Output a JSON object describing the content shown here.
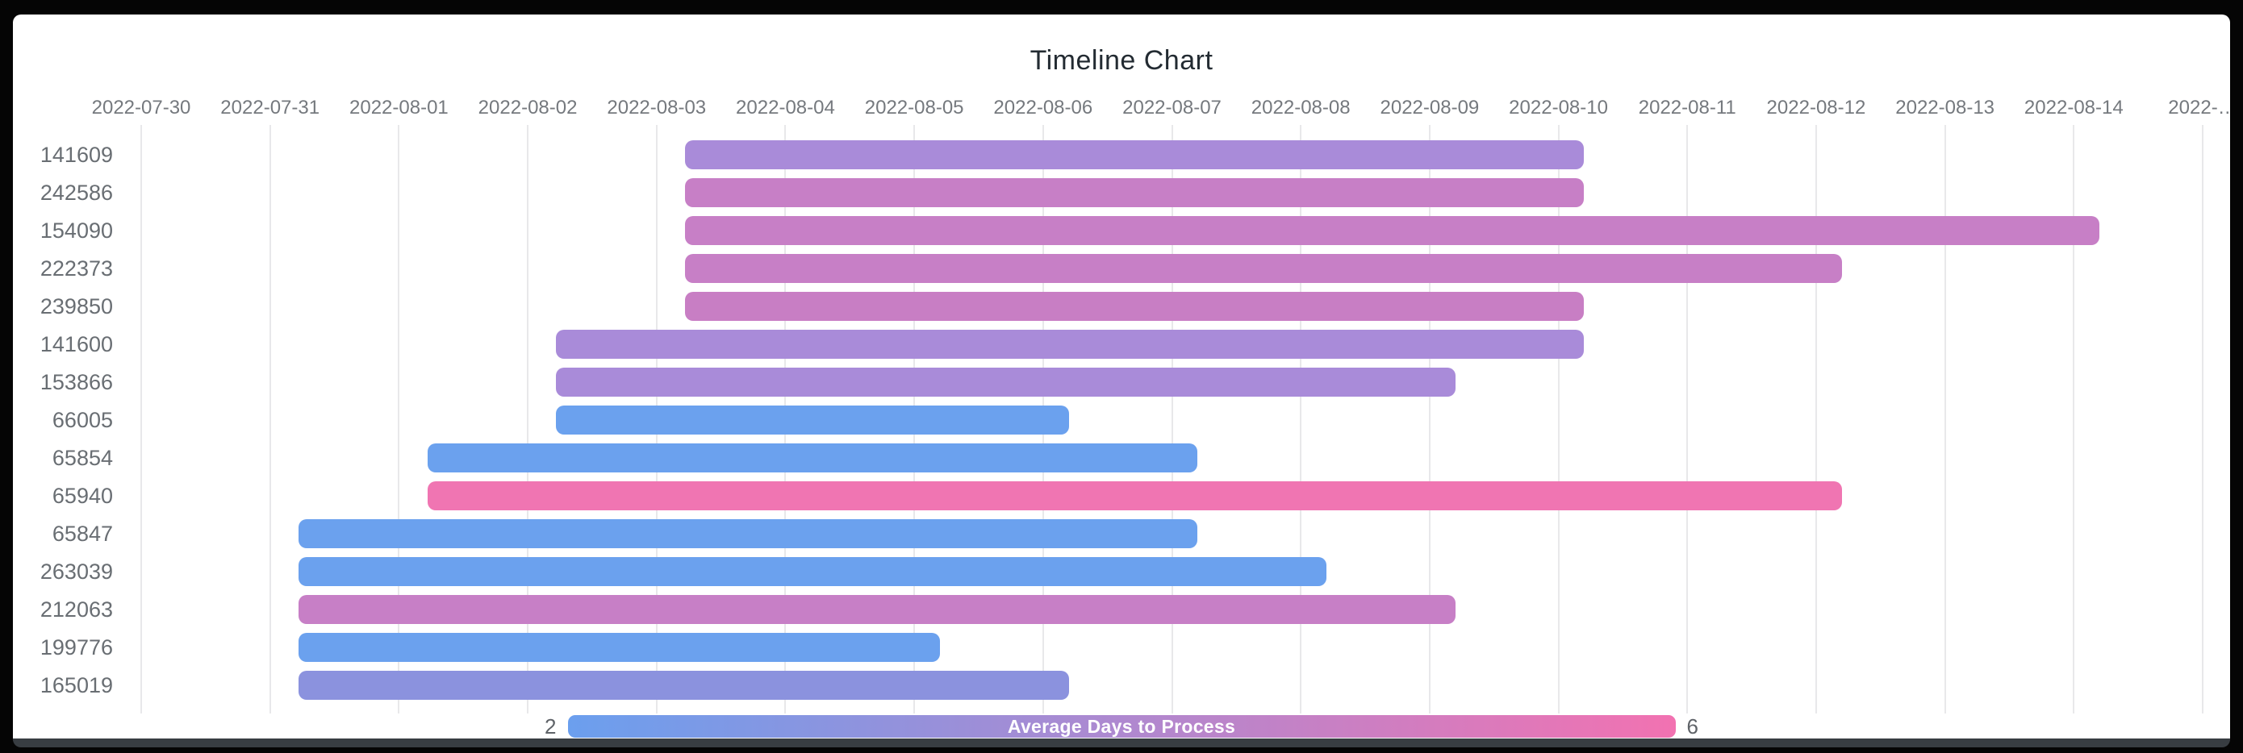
{
  "title": "Timeline Chart",
  "chart_data": {
    "type": "bar",
    "variant": "horizontal-timeline-gantt",
    "title": "Timeline Chart",
    "x_axis": {
      "axis_start": "2022-07-30",
      "axis_end": "2022-08-15",
      "total_days": 16,
      "tick_interval_days": 1,
      "tick_labels": [
        "2022-07-30",
        "2022-07-31",
        "2022-08-01",
        "2022-08-02",
        "2022-08-03",
        "2022-08-04",
        "2022-08-05",
        "2022-08-06",
        "2022-08-07",
        "2022-08-08",
        "2022-08-09",
        "2022-08-10",
        "2022-08-11",
        "2022-08-12",
        "2022-08-13",
        "2022-08-14",
        "2022-…"
      ],
      "grid": true
    },
    "rows": [
      {
        "id": "141609",
        "start": "2022-08-03",
        "end": "2022-08-10",
        "duration_days": 7,
        "avg_days_to_process": 3.9,
        "color": "#A98BD9"
      },
      {
        "id": "242586",
        "start": "2022-08-03",
        "end": "2022-08-10",
        "duration_days": 7,
        "avg_days_to_process": 4.7,
        "color": "#C77FC6"
      },
      {
        "id": "154090",
        "start": "2022-08-03",
        "end": "2022-08-14",
        "duration_days": 11,
        "avg_days_to_process": 4.7,
        "color": "#C77FC6"
      },
      {
        "id": "222373",
        "start": "2022-08-03",
        "end": "2022-08-12",
        "duration_days": 9,
        "avg_days_to_process": 4.7,
        "color": "#C77FC6"
      },
      {
        "id": "239850",
        "start": "2022-08-03",
        "end": "2022-08-10",
        "duration_days": 7,
        "avg_days_to_process": 4.7,
        "color": "#C87EC4"
      },
      {
        "id": "141600",
        "start": "2022-08-02",
        "end": "2022-08-10",
        "duration_days": 8,
        "avg_days_to_process": 3.9,
        "color": "#A98BD9"
      },
      {
        "id": "153866",
        "start": "2022-08-02",
        "end": "2022-08-09",
        "duration_days": 7,
        "avg_days_to_process": 3.9,
        "color": "#A98BD9"
      },
      {
        "id": "66005",
        "start": "2022-08-02",
        "end": "2022-08-06",
        "duration_days": 4,
        "avg_days_to_process": 2.0,
        "color": "#6BA1EE"
      },
      {
        "id": "65854",
        "start": "2022-08-01",
        "end": "2022-08-07",
        "duration_days": 6,
        "avg_days_to_process": 2.0,
        "color": "#6BA1EE"
      },
      {
        "id": "65940",
        "start": "2022-08-01",
        "end": "2022-08-12",
        "duration_days": 11,
        "avg_days_to_process": 6.0,
        "color": "#F075B2"
      },
      {
        "id": "65847",
        "start": "2022-07-31",
        "end": "2022-08-07",
        "duration_days": 7,
        "avg_days_to_process": 2.0,
        "color": "#6BA1EE"
      },
      {
        "id": "263039",
        "start": "2022-07-31",
        "end": "2022-08-08",
        "duration_days": 8,
        "avg_days_to_process": 2.0,
        "color": "#6BA1EE"
      },
      {
        "id": "212063",
        "start": "2022-07-31",
        "end": "2022-08-09",
        "duration_days": 9,
        "avg_days_to_process": 4.7,
        "color": "#C77FC6"
      },
      {
        "id": "199776",
        "start": "2022-07-31",
        "end": "2022-08-05",
        "duration_days": 5,
        "avg_days_to_process": 2.0,
        "color": "#6BA1EE"
      },
      {
        "id": "165019",
        "start": "2022-07-31",
        "end": "2022-08-06",
        "duration_days": 6,
        "avg_days_to_process": 3.0,
        "color": "#8B92DE"
      }
    ],
    "colorbar": {
      "label": "Average Days to Process",
      "min": 2,
      "max": 6,
      "min_color": "#6B9FEE",
      "max_color": "#F272B1",
      "position": "bottom"
    },
    "legend_position": "bottom",
    "background": "#ffffff"
  }
}
